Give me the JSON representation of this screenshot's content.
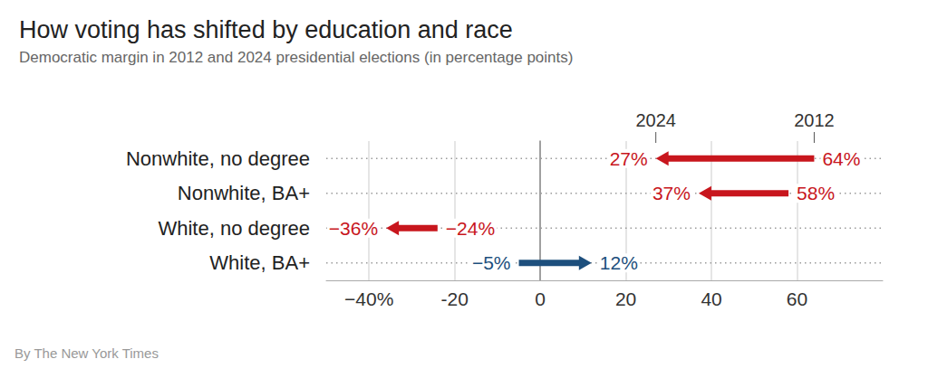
{
  "chart_data": {
    "type": "arrow",
    "title": "How voting has shifted by education and race",
    "subtitle": "Democratic margin in 2012 and 2024 presidential elections (in percentage points)",
    "source": "By The New York Times",
    "orientation": "horizontal",
    "categories": [
      "Nonwhite, no degree",
      "Nonwhite, BA+",
      "White, no degree",
      "White, BA+"
    ],
    "colors": [
      "#c8161d",
      "#c8161d",
      "#c8161d",
      "#1d4f7d"
    ],
    "series": [
      {
        "name": "2012",
        "values": [
          64,
          58,
          -24,
          -5
        ],
        "value_labels": [
          "64%",
          "58%",
          "−24%",
          "−5%"
        ]
      },
      {
        "name": "2024",
        "values": [
          27,
          37,
          -36,
          12
        ],
        "value_labels": [
          "27%",
          "37%",
          "−36%",
          "12%"
        ]
      }
    ],
    "xlim": [
      -50,
      80
    ],
    "xticks": [
      {
        "value": -40,
        "label": "−40%"
      },
      -20,
      0,
      20,
      40,
      60
    ],
    "grid": true,
    "data_labels": true
  }
}
